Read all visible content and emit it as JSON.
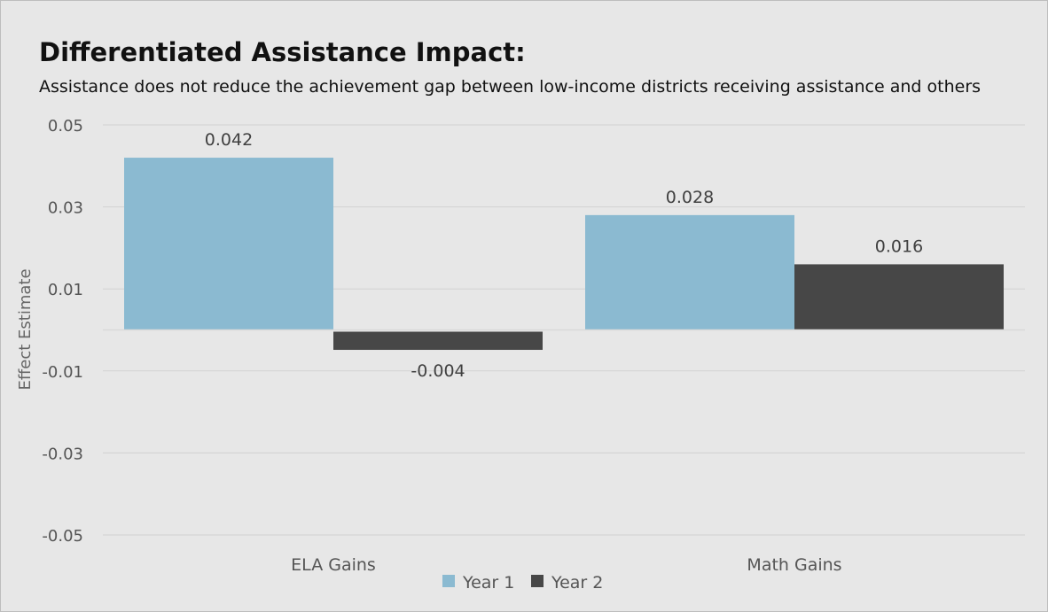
{
  "chart_data": {
    "type": "bar",
    "title": "Differentiated Assistance Impact:",
    "subtitle": "Assistance does not reduce the achievement gap between low-income districts receiving assistance and others",
    "ylabel": "Effect Estimate",
    "xlabel": "",
    "categories": [
      "ELA Gains",
      "Math Gains"
    ],
    "series": [
      {
        "name": "Year 1",
        "color": "#8bbad1",
        "values": [
          0.042,
          0.028
        ],
        "labels": [
          "0.042",
          "0.028"
        ]
      },
      {
        "name": "Year 2",
        "color": "#474747",
        "values": [
          -0.004,
          0.016
        ],
        "labels": [
          "-0.004",
          "0.016"
        ]
      }
    ],
    "ylim": [
      -0.05,
      0.05
    ],
    "yticks": [
      0.05,
      0.03,
      0.01,
      -0.01,
      -0.03,
      -0.05
    ],
    "ytick_labels": [
      "0.05",
      "0.03",
      "0.01",
      "-0.01",
      "-0.03",
      "-0.05"
    ],
    "grid": true,
    "legend_position": "bottom"
  }
}
